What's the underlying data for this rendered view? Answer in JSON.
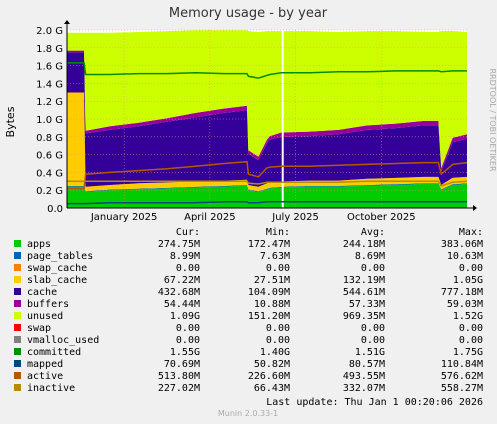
{
  "chart_data": {
    "type": "area",
    "title": "Memory usage - by year",
    "ylabel": "Bytes",
    "side_label": "RRDTOOL / TOBI OETIKER",
    "ylim": [
      0,
      2.0
    ],
    "y_ticks": [
      "0.0",
      "0.2 G",
      "0.4 G",
      "0.6 G",
      "0.8 G",
      "1.0 G",
      "1.2 G",
      "1.4 G",
      "1.6 G",
      "1.8 G",
      "2.0 G"
    ],
    "x_ticks": [
      "January 2025",
      "April 2025",
      "July 2025",
      "October 2025"
    ],
    "x_tick_months": [
      2.0,
      5.0,
      8.0,
      11.0
    ],
    "x_range_months": [
      0,
      14
    ],
    "x_months": [
      0,
      0.6,
      0.65,
      1.5,
      2.5,
      3.5,
      4.5,
      5.5,
      6.3,
      6.35,
      6.7,
      7.0,
      7.1,
      7.5,
      8.5,
      9.5,
      10.5,
      11.5,
      12.5,
      13.0,
      13.1,
      13.5,
      14.0
    ],
    "series": [
      {
        "name": "apps",
        "color": "#00cc00",
        "values": [
          0.24,
          0.24,
          0.18,
          0.2,
          0.21,
          0.22,
          0.23,
          0.24,
          0.25,
          0.2,
          0.18,
          0.21,
          0.22,
          0.23,
          0.24,
          0.24,
          0.25,
          0.26,
          0.27,
          0.27,
          0.2,
          0.26,
          0.27
        ]
      },
      {
        "name": "page_tables",
        "color": "#0066b3",
        "values": [
          0.008,
          0.008,
          0.008,
          0.008,
          0.008,
          0.008,
          0.008,
          0.008,
          0.008,
          0.008,
          0.008,
          0.008,
          0.008,
          0.008,
          0.008,
          0.008,
          0.008,
          0.008,
          0.009,
          0.009,
          0.009,
          0.009,
          0.009
        ]
      },
      {
        "name": "swap_cache",
        "color": "#ff8000",
        "values": [
          0,
          0,
          0,
          0,
          0,
          0,
          0,
          0,
          0,
          0,
          0,
          0,
          0,
          0,
          0,
          0,
          0,
          0,
          0,
          0,
          0,
          0,
          0
        ]
      },
      {
        "name": "slab_cache",
        "color": "#ffcc00",
        "values": [
          1.05,
          1.05,
          0.05,
          0.05,
          0.06,
          0.06,
          0.06,
          0.06,
          0.06,
          0.05,
          0.05,
          0.06,
          0.06,
          0.06,
          0.06,
          0.06,
          0.07,
          0.07,
          0.07,
          0.07,
          0.05,
          0.07,
          0.07
        ]
      },
      {
        "name": "cache",
        "color": "#330099",
        "values": [
          0.45,
          0.45,
          0.6,
          0.62,
          0.64,
          0.68,
          0.72,
          0.76,
          0.78,
          0.35,
          0.3,
          0.45,
          0.48,
          0.5,
          0.5,
          0.52,
          0.55,
          0.56,
          0.58,
          0.58,
          0.15,
          0.4,
          0.43
        ]
      },
      {
        "name": "buffers",
        "color": "#990099",
        "values": [
          0.02,
          0.02,
          0.03,
          0.04,
          0.04,
          0.04,
          0.05,
          0.05,
          0.05,
          0.04,
          0.04,
          0.04,
          0.04,
          0.05,
          0.05,
          0.05,
          0.05,
          0.05,
          0.05,
          0.05,
          0.04,
          0.05,
          0.05
        ]
      },
      {
        "name": "unused",
        "color": "#ccff00",
        "values": [
          0.2,
          0.2,
          1.1,
          1.05,
          1.02,
          0.98,
          0.93,
          0.88,
          0.85,
          1.34,
          1.4,
          1.22,
          1.18,
          1.14,
          1.13,
          1.1,
          1.06,
          1.04,
          1.0,
          1.0,
          1.54,
          1.2,
          1.15
        ]
      },
      {
        "name": "swap",
        "color": "#ff0000",
        "values": [
          0,
          0,
          0,
          0,
          0,
          0,
          0,
          0,
          0,
          0,
          0,
          0,
          0,
          0,
          0,
          0,
          0,
          0,
          0,
          0,
          0,
          0,
          0
        ]
      },
      {
        "name": "vmalloc_used",
        "color": "#808080",
        "values": [
          0,
          0,
          0,
          0,
          0,
          0,
          0,
          0,
          0,
          0,
          0,
          0,
          0,
          0,
          0,
          0,
          0,
          0,
          0,
          0,
          0,
          0,
          0
        ]
      }
    ],
    "lines": [
      {
        "name": "committed",
        "color": "#008f00",
        "values": [
          1.63,
          1.63,
          1.5,
          1.5,
          1.51,
          1.51,
          1.52,
          1.51,
          1.51,
          1.48,
          1.46,
          1.49,
          1.5,
          1.52,
          1.52,
          1.53,
          1.53,
          1.54,
          1.54,
          1.54,
          1.53,
          1.54,
          1.54
        ]
      },
      {
        "name": "mapped",
        "color": "#00487d",
        "values": [
          0.05,
          0.05,
          0.05,
          0.06,
          0.06,
          0.06,
          0.06,
          0.07,
          0.07,
          0.06,
          0.06,
          0.07,
          0.07,
          0.07,
          0.07,
          0.07,
          0.07,
          0.07,
          0.07,
          0.07,
          0.07,
          0.07,
          0.07
        ]
      },
      {
        "name": "active",
        "color": "#b35a00",
        "values": [
          0.22,
          0.22,
          0.38,
          0.4,
          0.42,
          0.44,
          0.47,
          0.5,
          0.52,
          0.38,
          0.35,
          0.45,
          0.46,
          0.47,
          0.47,
          0.48,
          0.49,
          0.5,
          0.51,
          0.51,
          0.38,
          0.49,
          0.51
        ]
      },
      {
        "name": "inactive",
        "color": "#b38f00",
        "values": [
          0.3,
          0.3,
          0.3,
          0.3,
          0.3,
          0.3,
          0.3,
          0.3,
          0.3,
          0.28,
          0.27,
          0.29,
          0.29,
          0.29,
          0.29,
          0.29,
          0.3,
          0.3,
          0.3,
          0.3,
          0.25,
          0.29,
          0.3
        ]
      }
    ],
    "legend_headers": {
      "cur": "Cur:",
      "min": "Min:",
      "avg": "Avg:",
      "max": "Max:"
    },
    "legend": [
      {
        "name": "apps",
        "color": "#00cc00",
        "cur": "274.75M",
        "min": "172.47M",
        "avg": "244.18M",
        "max": "383.06M"
      },
      {
        "name": "page_tables",
        "color": "#0066b3",
        "cur": "8.99M",
        "min": "7.63M",
        "avg": "8.69M",
        "max": "10.63M"
      },
      {
        "name": "swap_cache",
        "color": "#ff8000",
        "cur": "0.00",
        "min": "0.00",
        "avg": "0.00",
        "max": "0.00"
      },
      {
        "name": "slab_cache",
        "color": "#ffcc00",
        "cur": "67.22M",
        "min": "27.51M",
        "avg": "132.19M",
        "max": "1.05G"
      },
      {
        "name": "cache",
        "color": "#330099",
        "cur": "432.68M",
        "min": "104.09M",
        "avg": "544.61M",
        "max": "777.18M"
      },
      {
        "name": "buffers",
        "color": "#990099",
        "cur": "54.44M",
        "min": "10.88M",
        "avg": "57.33M",
        "max": "59.03M"
      },
      {
        "name": "unused",
        "color": "#ccff00",
        "cur": "1.09G",
        "min": "151.20M",
        "avg": "969.35M",
        "max": "1.52G"
      },
      {
        "name": "swap",
        "color": "#ff0000",
        "cur": "0.00",
        "min": "0.00",
        "avg": "0.00",
        "max": "0.00"
      },
      {
        "name": "vmalloc_used",
        "color": "#808080",
        "cur": "0.00",
        "min": "0.00",
        "avg": "0.00",
        "max": "0.00"
      },
      {
        "name": "committed",
        "color": "#008f00",
        "cur": "1.55G",
        "min": "1.40G",
        "avg": "1.51G",
        "max": "1.75G"
      },
      {
        "name": "mapped",
        "color": "#00487d",
        "cur": "70.69M",
        "min": "50.82M",
        "avg": "80.57M",
        "max": "110.84M"
      },
      {
        "name": "active",
        "color": "#b35a00",
        "cur": "513.80M",
        "min": "226.60M",
        "avg": "493.55M",
        "max": "576.62M"
      },
      {
        "name": "inactive",
        "color": "#b38f00",
        "cur": "227.02M",
        "min": "66.43M",
        "avg": "332.07M",
        "max": "558.27M"
      }
    ],
    "last_update": "Last update:  Thu Jan  1 00:20:06 2026",
    "footer": "Munin 2.0.33-1"
  }
}
